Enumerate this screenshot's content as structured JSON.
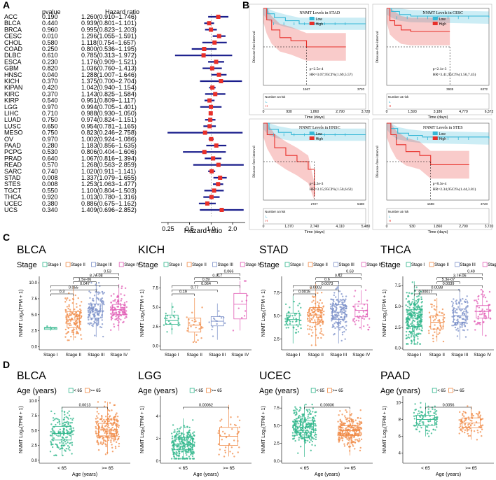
{
  "chart_data": [
    {
      "panel": "A",
      "type": "forest",
      "columns": [
        "pvalue",
        "Hazard ratio"
      ],
      "xlabel": "Hazard ratio",
      "xticks": [
        "0.25",
        "0.5",
        "1.0",
        "2.0"
      ],
      "tick_values": [
        0.25,
        0.5,
        1.0,
        2.0
      ],
      "xlim": [
        0.2,
        3.0
      ],
      "rows": [
        {
          "name": "ACC",
          "p": "0.190",
          "hr_text": "1.260(0.910−1.746)",
          "hr": 1.26,
          "lo": 0.91,
          "hi": 1.746
        },
        {
          "name": "BLCA",
          "p": "0.440",
          "hr_text": "0.939(0.801−1.101)",
          "hr": 0.939,
          "lo": 0.801,
          "hi": 1.101
        },
        {
          "name": "BRCA",
          "p": "0.960",
          "hr_text": "0.995(0.823−1.203)",
          "hr": 0.995,
          "lo": 0.823,
          "hi": 1.203
        },
        {
          "name": "CESC",
          "p": "0.010",
          "hr_text": "1.296(1.055−1.591)",
          "hr": 1.296,
          "lo": 1.055,
          "hi": 1.591
        },
        {
          "name": "CHOL",
          "p": "0.580",
          "hr_text": "1.118(0.754−1.657)",
          "hr": 1.118,
          "lo": 0.754,
          "hi": 1.657
        },
        {
          "name": "COAD",
          "p": "0.250",
          "hr_text": "0.800(0.536−1.195)",
          "hr": 0.8,
          "lo": 0.536,
          "hi": 1.195
        },
        {
          "name": "DLBC",
          "p": "0.610",
          "hr_text": "0.785(0.313−1.972)",
          "hr": 0.785,
          "lo": 0.313,
          "hi": 1.972
        },
        {
          "name": "ESCA",
          "p": "0.230",
          "hr_text": "1.176(0.909−1.521)",
          "hr": 1.176,
          "lo": 0.909,
          "hi": 1.521
        },
        {
          "name": "GBM",
          "p": "0.820",
          "hr_text": "1.036(0.760−1.413)",
          "hr": 1.036,
          "lo": 0.76,
          "hi": 1.413
        },
        {
          "name": "HNSC",
          "p": "0.040",
          "hr_text": "1.288(1.007−1.646)",
          "hr": 1.288,
          "lo": 1.007,
          "hi": 1.646
        },
        {
          "name": "KICH",
          "p": "0.370",
          "hr_text": "1.375(0.700−2.704)",
          "hr": 1.375,
          "lo": 0.7,
          "hi": 2.704
        },
        {
          "name": "KIPAN",
          "p": "0.420",
          "hr_text": "1.042(0.940−1.154)",
          "hr": 1.042,
          "lo": 0.94,
          "hi": 1.154
        },
        {
          "name": "KIRC",
          "p": "0.370",
          "hr_text": "1.143(0.825−1.584)",
          "hr": 1.143,
          "lo": 0.825,
          "hi": 1.584
        },
        {
          "name": "KIRP",
          "p": "0.540",
          "hr_text": "0.951(0.809−1.117)",
          "hr": 0.951,
          "lo": 0.809,
          "hi": 1.117
        },
        {
          "name": "LGG",
          "p": "0.970",
          "hr_text": "0.994(0.705−1.401)",
          "hr": 0.994,
          "lo": 0.705,
          "hi": 1.401
        },
        {
          "name": "LIHC",
          "p": "0.710",
          "hr_text": "0.988(0.930−1.050)",
          "hr": 0.988,
          "lo": 0.93,
          "hi": 1.05
        },
        {
          "name": "LUAD",
          "p": "0.750",
          "hr_text": "0.974(0.824−1.151)",
          "hr": 0.974,
          "lo": 0.824,
          "hi": 1.151
        },
        {
          "name": "LUSC",
          "p": "0.650",
          "hr_text": "0.954(0.781−1.165)",
          "hr": 0.954,
          "lo": 0.781,
          "hi": 1.165
        },
        {
          "name": "MESO",
          "p": "0.750",
          "hr_text": "0.823(0.246−2.758)",
          "hr": 0.823,
          "lo": 0.246,
          "hi": 2.758
        },
        {
          "name": "OV",
          "p": "0.970",
          "hr_text": "1.002(0.924−1.086)",
          "hr": 1.002,
          "lo": 0.924,
          "hi": 1.086
        },
        {
          "name": "PAAD",
          "p": "0.280",
          "hr_text": "1.183(0.856−1.635)",
          "hr": 1.183,
          "lo": 0.856,
          "hi": 1.635
        },
        {
          "name": "PCPG",
          "p": "0.530",
          "hr_text": "0.806(0.404−1.606)",
          "hr": 0.806,
          "lo": 0.404,
          "hi": 1.606
        },
        {
          "name": "PRAD",
          "p": "0.640",
          "hr_text": "1.067(0.816−1.394)",
          "hr": 1.067,
          "lo": 0.816,
          "hi": 1.394
        },
        {
          "name": "READ",
          "p": "0.570",
          "hr_text": "1.268(0.563−2.859)",
          "hr": 1.268,
          "lo": 0.563,
          "hi": 2.859
        },
        {
          "name": "SARC",
          "p": "0.740",
          "hr_text": "1.020(0.911−1.141)",
          "hr": 1.02,
          "lo": 0.911,
          "hi": 1.141
        },
        {
          "name": "STAD",
          "p": "0.008",
          "hr_text": "1.337(1.079−1.655)",
          "hr": 1.337,
          "lo": 1.079,
          "hi": 1.655
        },
        {
          "name": "STES",
          "p": "0.008",
          "hr_text": "1.253(1.063−1.477)",
          "hr": 1.253,
          "lo": 1.063,
          "hi": 1.477
        },
        {
          "name": "TGCT",
          "p": "0.550",
          "hr_text": "1.100(0.804−1.503)",
          "hr": 1.1,
          "lo": 0.804,
          "hi": 1.503
        },
        {
          "name": "THCA",
          "p": "0.920",
          "hr_text": "1.013(0.780−1.316)",
          "hr": 1.013,
          "lo": 0.78,
          "hi": 1.316
        },
        {
          "name": "UCEC",
          "p": "0.380",
          "hr_text": "0.886(0.675−1.162)",
          "hr": 0.886,
          "lo": 0.675,
          "hi": 1.162
        },
        {
          "name": "UCS",
          "p": "0.340",
          "hr_text": "1.409(0.696−2.852)",
          "hr": 1.409,
          "lo": 0.696,
          "hi": 2.852
        }
      ]
    },
    {
      "panel": "B",
      "type": "kaplan-meier",
      "ylabel": "Disease-free interval",
      "xlabel": "Time (days)",
      "risk_label": "Number at risk",
      "strata_short": [
        "L",
        "H"
      ],
      "legend_low": "Low",
      "legend_high": "High",
      "plots": [
        {
          "id": "stad",
          "title": "NNMT Levels in STAD",
          "stat1": "p=2.5e-4",
          "stat2": "HR=3.07,95CI%(1.69,5.57)",
          "xticks": [
            "0",
            "930",
            "1,860",
            "2,790",
            "3,720"
          ],
          "xmax": 3720,
          "cut": "1567",
          "cut_val": 1567,
          "end": "3720",
          "low": [
            [
              0,
              1
            ],
            [
              150,
              0.93
            ],
            [
              400,
              0.88
            ],
            [
              800,
              0.84
            ],
            [
              1300,
              0.8
            ],
            [
              3720,
              0.8
            ]
          ],
          "high": [
            [
              0,
              1
            ],
            [
              120,
              0.85
            ],
            [
              300,
              0.72
            ],
            [
              600,
              0.62
            ],
            [
              1000,
              0.58
            ],
            [
              1567,
              0.5
            ],
            [
              3000,
              0.5
            ]
          ]
        },
        {
          "id": "cesc",
          "title": "NNMT Levels in CESC",
          "stat1": "p=2.1e-3",
          "stat2": "HR=3.41,95CI%(1.56,7.45)",
          "xticks": [
            "0",
            "1,593",
            "3,186",
            "4,779",
            "6,372"
          ],
          "xmax": 6372,
          "cut": "3935",
          "cut_val": 3935,
          "end": "6372",
          "low": [
            [
              0,
              1
            ],
            [
              300,
              0.96
            ],
            [
              800,
              0.92
            ],
            [
              1500,
              0.9
            ],
            [
              6372,
              0.88
            ]
          ],
          "high": [
            [
              0,
              1
            ],
            [
              200,
              0.84
            ],
            [
              500,
              0.78
            ],
            [
              900,
              0.72
            ],
            [
              1500,
              0.7
            ],
            [
              3935,
              0.7
            ]
          ]
        },
        {
          "id": "hnsc",
          "title": "NNMT Levels in HNSC",
          "stat1": "p=3.2e-3",
          "stat2": "HR=3.15,95CI%(1.50,6.62)",
          "xticks": [
            "0",
            "1,370",
            "2,740",
            "4,110",
            "5,480"
          ],
          "xmax": 5480,
          "cut": "2727",
          "cut_val": 2727,
          "end": "5480",
          "low": [
            [
              0,
              1
            ],
            [
              300,
              0.92
            ],
            [
              800,
              0.88
            ],
            [
              1500,
              0.85
            ],
            [
              5480,
              0.85
            ]
          ],
          "high": [
            [
              0,
              1
            ],
            [
              200,
              0.85
            ],
            [
              600,
              0.68
            ],
            [
              1200,
              0.58
            ],
            [
              1800,
              0.5
            ],
            [
              2400,
              0.4
            ],
            [
              2727,
              0.05
            ]
          ]
        },
        {
          "id": "stes",
          "title": "NNMT Levels in STES",
          "stat1": "p=8.3e-4",
          "stat2": "HR=2.34,95CI%(1.44,3.81)",
          "xticks": [
            "0",
            "930",
            "1,860",
            "2,790",
            "3,720"
          ],
          "xmax": 3720,
          "cut": "1598",
          "cut_val": 1598,
          "end": "3720",
          "low": [
            [
              0,
              1
            ],
            [
              150,
              0.93
            ],
            [
              400,
              0.87
            ],
            [
              800,
              0.84
            ],
            [
              1300,
              0.82
            ],
            [
              3720,
              0.8
            ]
          ],
          "high": [
            [
              0,
              1
            ],
            [
              150,
              0.85
            ],
            [
              350,
              0.72
            ],
            [
              700,
              0.63
            ],
            [
              1200,
              0.58
            ],
            [
              1598,
              0.46
            ],
            [
              3000,
              0.46
            ]
          ]
        }
      ]
    },
    {
      "panel": "C",
      "type": "boxplot",
      "legend_title": "Stage",
      "groups": [
        "Stage I",
        "Stage II",
        "Stage III",
        "Stage IV"
      ],
      "ylabel": "NNMT Log₂(TPM + 1)",
      "plots": [
        {
          "title": "BLCA",
          "boxes": [
            [
              2.5,
              2.7,
              2.9,
              3.0,
              3.2
            ],
            [
              1.0,
              3.0,
              4.2,
              5.5,
              9.5
            ],
            [
              1.5,
              4.5,
              5.6,
              6.7,
              10.0
            ],
            [
              2.5,
              5.0,
              5.8,
              6.6,
              9.8
            ]
          ],
          "pvals": [
            "0.3",
            "0.055",
            "0.047",
            "1.5e-06",
            "8.7e-08",
            "0.53"
          ],
          "ns": [
            3,
            130,
            140,
            120
          ]
        },
        {
          "title": "KICH",
          "boxes": [
            [
              1.5,
              2.8,
              3.3,
              4.0,
              5.6
            ],
            [
              0.5,
              1.8,
              2.7,
              3.6,
              6.2
            ],
            [
              0.8,
              2.6,
              3.2,
              3.8,
              5.5
            ],
            [
              2.0,
              3.5,
              5.4,
              6.8,
              8.4
            ]
          ],
          "pvals": [
            "0.19",
            "0.77",
            "0.064",
            "0.39",
            "0.017",
            "0.066"
          ],
          "ns": [
            20,
            25,
            14,
            10
          ]
        },
        {
          "title": "STAD",
          "boxes": [
            [
              2.0,
              4.0,
              4.6,
              5.3,
              7.2
            ],
            [
              1.8,
              4.3,
              5.1,
              5.9,
              8.5
            ],
            [
              2.0,
              4.6,
              5.4,
              6.2,
              8.8
            ],
            [
              3.5,
              4.9,
              5.6,
              6.3,
              7.8
            ]
          ],
          "pvals": [
            "0.0015",
            "0.0003",
            "0.0073",
            "0.6",
            "0.42",
            "0.63"
          ],
          "ns": [
            55,
            120,
            160,
            40
          ]
        },
        {
          "title": "THCA",
          "boxes": [
            [
              0.5,
              2.6,
              3.6,
              4.6,
              8.0
            ],
            [
              0.8,
              2.3,
              3.1,
              3.9,
              6.0
            ],
            [
              1.0,
              3.1,
              3.9,
              4.7,
              7.0
            ],
            [
              1.5,
              3.6,
              4.4,
              5.1,
              7.0
            ]
          ],
          "pvals": [
            "0.00017",
            "0.0038",
            "0.0039",
            "5.3e-07",
            "3.7e-06",
            "0.49"
          ],
          "ns": [
            280,
            50,
            110,
            60
          ]
        }
      ]
    },
    {
      "panel": "D",
      "type": "boxplot",
      "legend_title": "Age (years)",
      "groups": [
        "< 65",
        ">= 65"
      ],
      "xlabel": "Age (years)",
      "ylabel": "NNMT Log₂(TPM + 1)",
      "plots": [
        {
          "title": "BLCA",
          "boxes": [
            [
              0.8,
              3.4,
              4.5,
              5.7,
              9.0
            ],
            [
              1.0,
              4.1,
              5.1,
              6.2,
              9.8
            ]
          ],
          "pval": "0.0013",
          "ns": [
            160,
            220
          ]
        },
        {
          "title": "LGG",
          "boxes": [
            [
              0.2,
              1.0,
              1.5,
              2.1,
              3.8
            ],
            [
              0.4,
              1.4,
              2.2,
              3.0,
              5.0
            ]
          ],
          "pval": "0.00062",
          "ns": [
            400,
            40
          ]
        },
        {
          "title": "UCEC",
          "boxes": [
            [
              0.6,
              4.0,
              4.8,
              5.7,
              8.0
            ],
            [
              0.8,
              3.6,
              4.3,
              5.0,
              7.2
            ]
          ],
          "pval": "0.00036",
          "ns": [
            300,
            260
          ]
        },
        {
          "title": "PAAD",
          "boxes": [
            [
              6.0,
              7.3,
              8.0,
              8.5,
              10.0
            ],
            [
              5.6,
              7.0,
              7.6,
              8.2,
              9.6
            ]
          ],
          "pval": "0.0056",
          "ns": [
            90,
            90
          ]
        }
      ]
    }
  ],
  "yticks": {
    "c_BLCA": [
      "0.0",
      "2.5",
      "5.0",
      "7.5",
      "10.0"
    ],
    "c_KICH": [
      "0.0",
      "2.5",
      "5.0",
      "7.5"
    ],
    "c_STAD": [
      "2.5",
      "5.0",
      "7.5"
    ],
    "c_THCA": [
      "0.0",
      "2.5",
      "5.0",
      "7.5"
    ],
    "d_BLCA": [
      "0.0",
      "2.5",
      "5.0",
      "7.5",
      "10.0"
    ],
    "d_LGG": [
      "0",
      "2",
      "4"
    ],
    "d_UCEC": [
      "0.0",
      "2.5",
      "5.0",
      "7.5"
    ],
    "d_PAAD": [
      "4",
      "6",
      "8",
      "10"
    ]
  },
  "panel_labels": [
    "A",
    "B",
    "C",
    "D"
  ],
  "colors": {
    "low": "#35b7d6",
    "high": "#e8302a",
    "forest_line": "#1a1e8c",
    "forest_box": "#e8302a",
    "g1": "#2db58a",
    "g2": "#f08a46",
    "g3": "#7a8fc8",
    "g4": "#e15db6"
  }
}
